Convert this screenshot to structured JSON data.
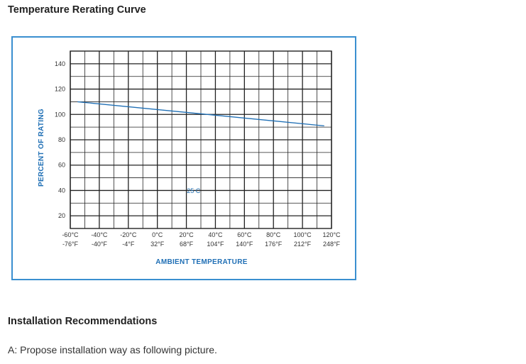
{
  "page": {
    "chart_heading": "Temperature Rerating Curve",
    "install_heading": "Installation Recommendations",
    "install_text": "A: Propose installation way as following picture."
  },
  "chart_data": {
    "type": "line",
    "title": "",
    "xlabel": "AMBIENT TEMPERATURE",
    "ylabel": "PERCENT OF RATING",
    "x_tick_labels_c": [
      "-60°C",
      "-40°C",
      "-20°C",
      "0°C",
      "20°C",
      "40°C",
      "60°C",
      "80°C",
      "100°C",
      "120°C"
    ],
    "x_tick_labels_f": [
      "-76°F",
      "-40°F",
      "-4°F",
      "32°F",
      "68°F",
      "104°F",
      "140°F",
      "176°F",
      "212°F",
      "248°F"
    ],
    "y_ticks": [
      20,
      40,
      60,
      80,
      100,
      120,
      140
    ],
    "xlim": [
      -60,
      120
    ],
    "ylim": [
      10,
      150
    ],
    "grid": true,
    "series": [
      {
        "x": [
          -55,
          115
        ],
        "y": [
          110,
          91
        ]
      }
    ],
    "annotations": [
      {
        "text": "25 C",
        "x": 25,
        "y": 38
      }
    ],
    "colors": {
      "line": "#1f6fb5",
      "grid": "#222222",
      "frame": "#3a8fd0",
      "axis_title": "#1f6fb5"
    }
  }
}
